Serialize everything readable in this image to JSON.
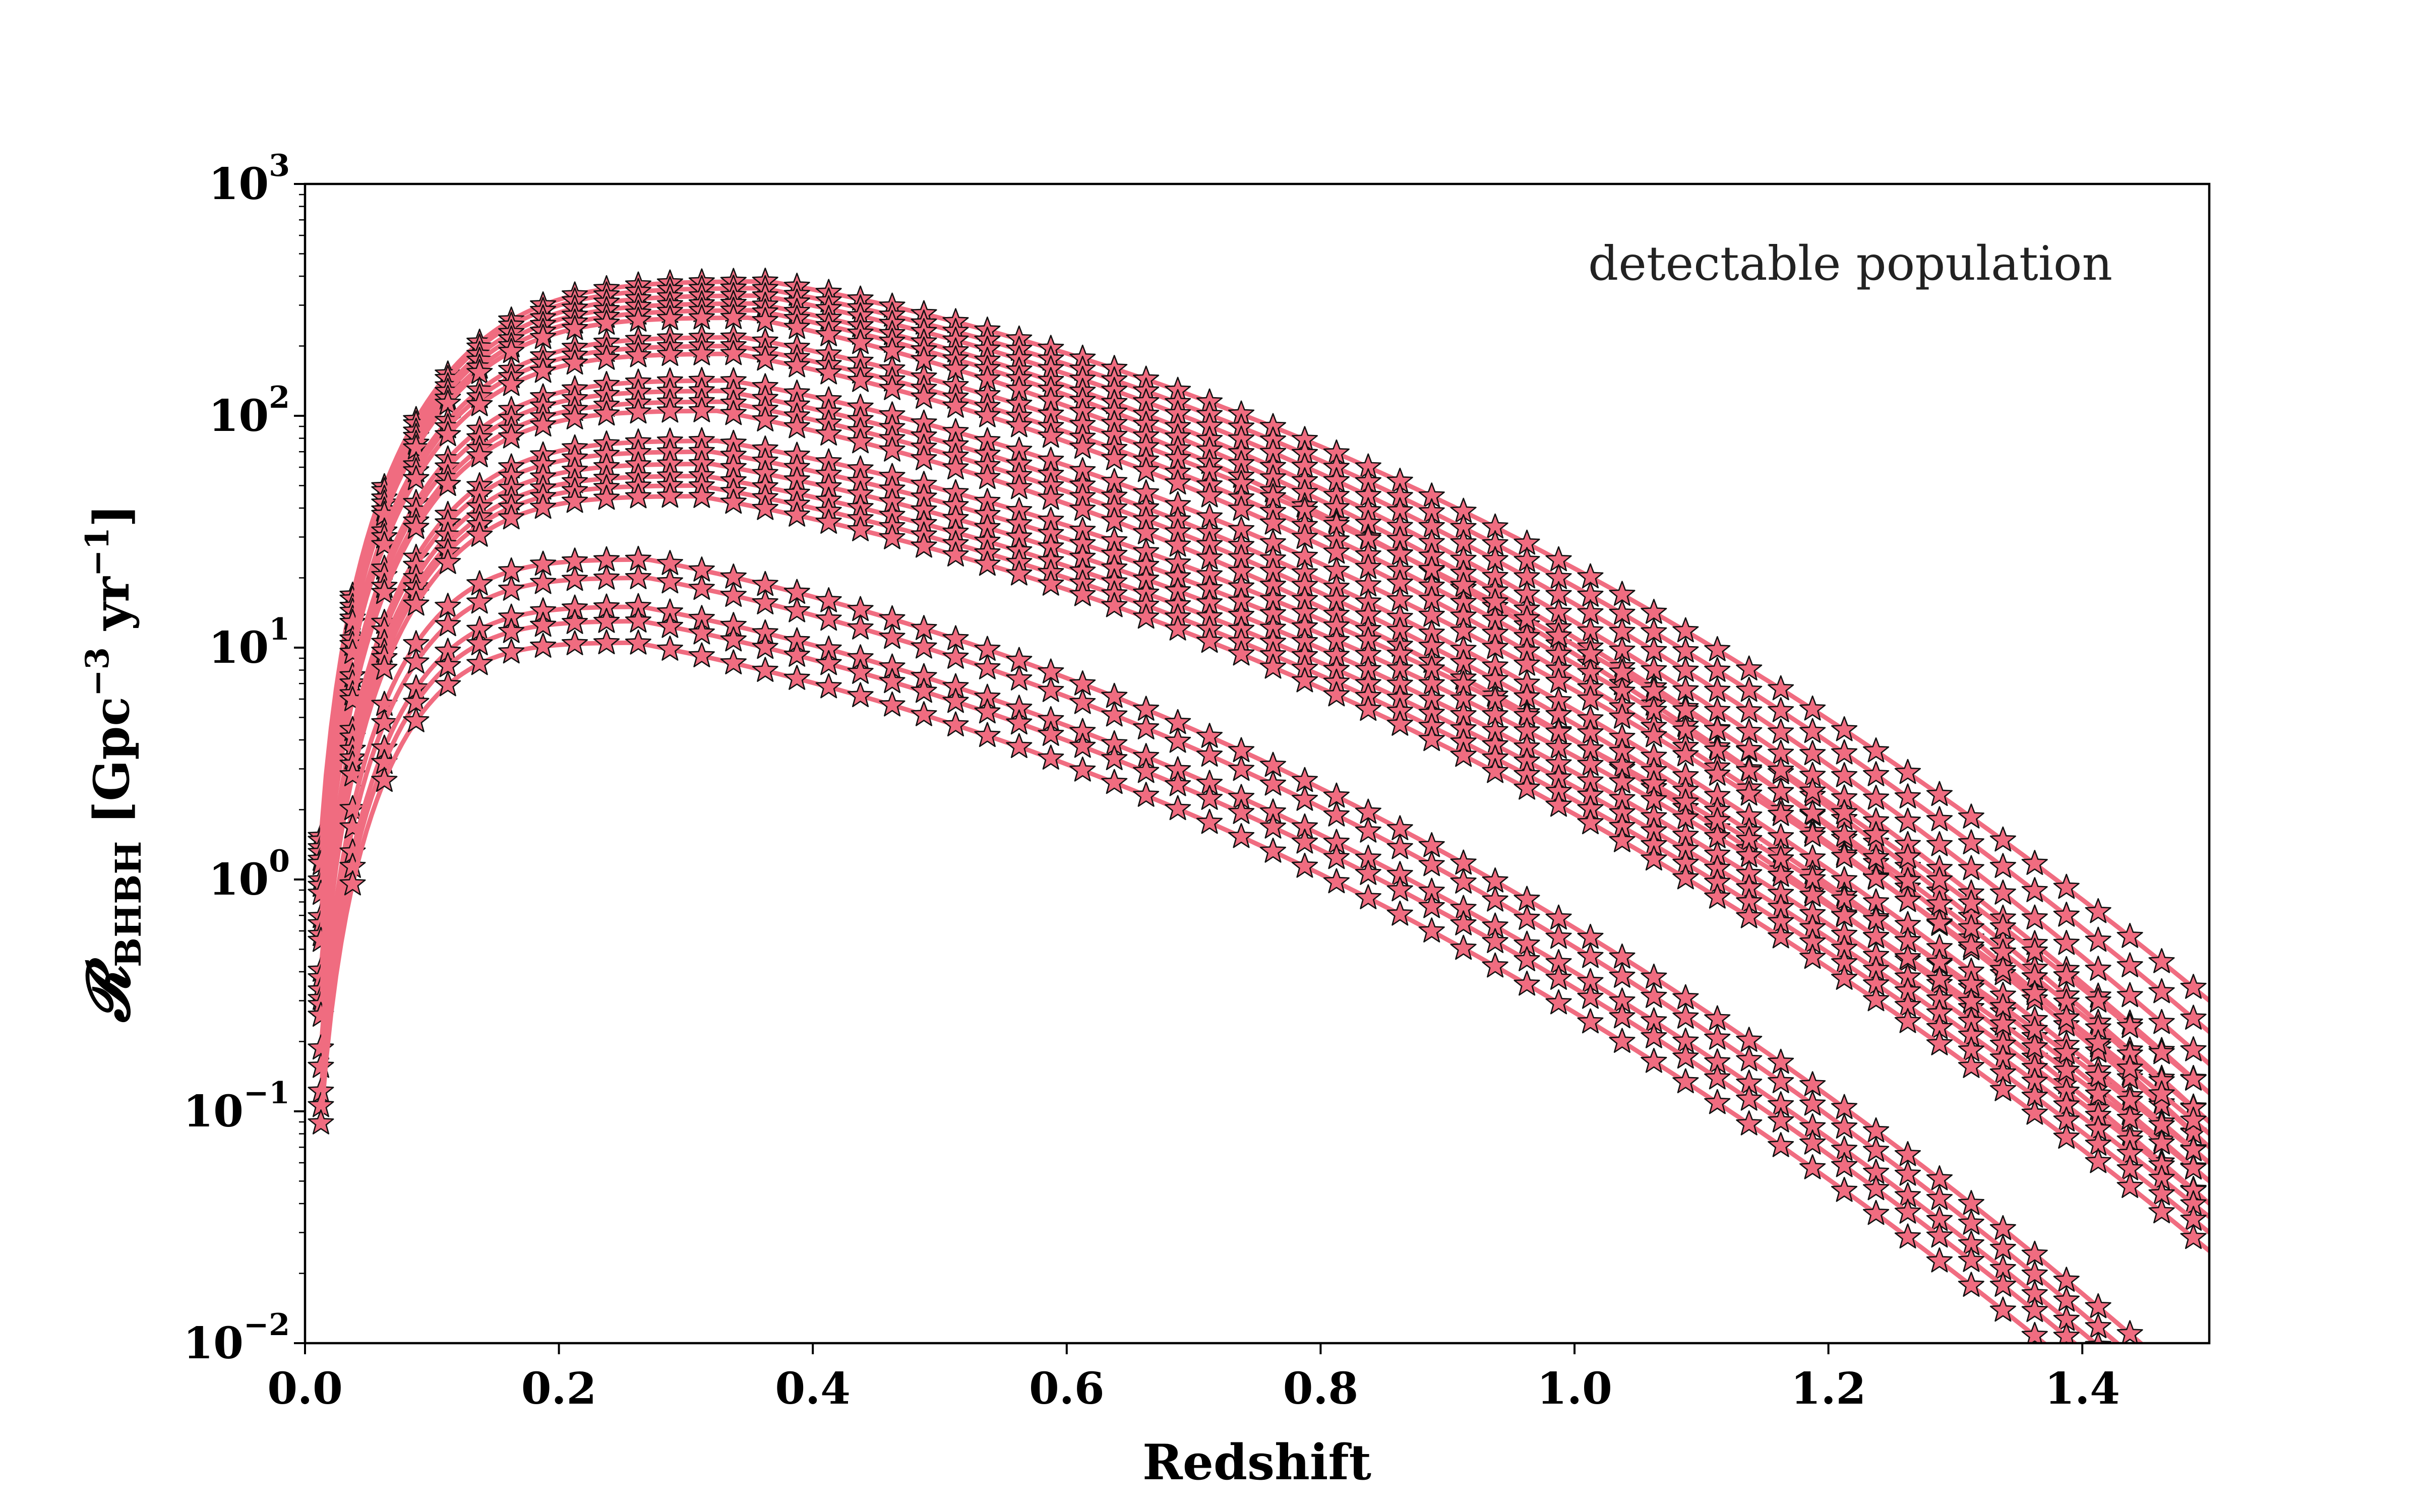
{
  "chart_data": {
    "type": "line",
    "xlabel": "Redshift",
    "ylabel": "R_BHBH  [Gpc^-3 yr^-1]",
    "ylabel_parts": {
      "symbol": "𝓡",
      "subscript": "BHBH",
      "unit_open": "[Gpc",
      "unit_exp1": "−3",
      "unit_mid": " yr",
      "unit_exp2": "−1",
      "unit_close": "]"
    },
    "annotation": "detectable population",
    "xlim": [
      0.0,
      1.5
    ],
    "ylim": [
      0.01,
      1000
    ],
    "yscale": "log",
    "x_ticks": [
      "0.0",
      "0.2",
      "0.4",
      "0.6",
      "0.8",
      "1.0",
      "1.2",
      "1.4"
    ],
    "x_tick_values": [
      0.0,
      0.2,
      0.4,
      0.6,
      0.8,
      1.0,
      1.2,
      1.4
    ],
    "y_ticks": [
      {
        "value": 0.01,
        "base": "10",
        "exp": "−2"
      },
      {
        "value": 0.1,
        "base": "10",
        "exp": "−1"
      },
      {
        "value": 1,
        "base": "10",
        "exp": "0"
      },
      {
        "value": 10,
        "base": "10",
        "exp": "1"
      },
      {
        "value": 100,
        "base": "10",
        "exp": "2"
      },
      {
        "value": 1000,
        "base": "10",
        "exp": "3"
      }
    ],
    "grid": false,
    "line_color": "#f06c80",
    "marker": "star",
    "marker_edge_color": "#111111",
    "x_start": 0.0125,
    "x_step": 0.025,
    "series": [
      {
        "peak": 380,
        "zpeak": 0.365,
        "end": 0.3
      },
      {
        "peak": 355,
        "zpeak": 0.36,
        "end": 0.22
      },
      {
        "peak": 330,
        "zpeak": 0.36,
        "end": 0.16
      },
      {
        "peak": 305,
        "zpeak": 0.355,
        "end": 0.12
      },
      {
        "peak": 285,
        "zpeak": 0.355,
        "end": 0.09
      },
      {
        "peak": 265,
        "zpeak": 0.35,
        "end": 0.07
      },
      {
        "peak": 218,
        "zpeak": 0.345,
        "end": 0.12
      },
      {
        "peak": 200,
        "zpeak": 0.34,
        "end": 0.09
      },
      {
        "peak": 185,
        "zpeak": 0.34,
        "end": 0.07
      },
      {
        "peak": 142,
        "zpeak": 0.335,
        "end": 0.08
      },
      {
        "peak": 128,
        "zpeak": 0.33,
        "end": 0.06
      },
      {
        "peak": 115,
        "zpeak": 0.33,
        "end": 0.05
      },
      {
        "peak": 105,
        "zpeak": 0.325,
        "end": 0.04
      },
      {
        "peak": 78,
        "zpeak": 0.325,
        "end": 0.06
      },
      {
        "peak": 70,
        "zpeak": 0.32,
        "end": 0.05
      },
      {
        "peak": 62,
        "zpeak": 0.32,
        "end": 0.04
      },
      {
        "peak": 55,
        "zpeak": 0.315,
        "end": 0.035
      },
      {
        "peak": 50,
        "zpeak": 0.31,
        "end": 0.03
      },
      {
        "peak": 45,
        "zpeak": 0.31,
        "end": 0.025
      },
      {
        "peak": 24,
        "zpeak": 0.27,
        "end": 0.0055
      },
      {
        "peak": 20,
        "zpeak": 0.27,
        "end": 0.0045
      },
      {
        "peak": 15,
        "zpeak": 0.265,
        "end": 0.0038
      },
      {
        "peak": 13,
        "zpeak": 0.265,
        "end": 0.0032
      },
      {
        "peak": 10.5,
        "zpeak": 0.26,
        "end": 0.0025
      }
    ]
  }
}
